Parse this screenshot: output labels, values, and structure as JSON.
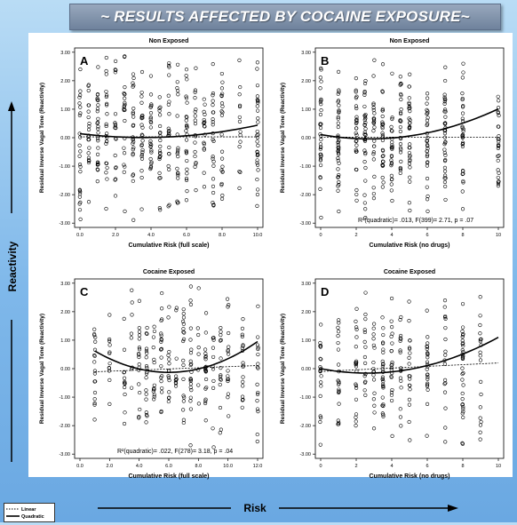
{
  "title": "~ RESULTS AFFECTED BY COCAINE EXPOSURE~",
  "side_label": "Reactivity",
  "bottom_label": "Risk",
  "legend": {
    "linear": "Linear",
    "quadratic": "Quadratic"
  },
  "panels": [
    {
      "id": "A",
      "title": "Non Exposed",
      "xlabel": "Cumulative Risk (full scale)",
      "ylabel": "Residual Inverse Vagal Tone (Reactivity)",
      "xticks": [
        "0.0",
        "2.0",
        "4.0",
        "6.0",
        "8.0",
        "10.0"
      ],
      "xmax": 10,
      "yticks": [
        "3.00",
        "2.00",
        "1.00",
        "0.00",
        "-1.00",
        "-2.00",
        "-3.00"
      ],
      "stat": "",
      "linear": [
        0.03,
        0.0
      ],
      "quad": [
        0.14,
        -0.075,
        0.0105
      ],
      "seed": 11,
      "n": 430,
      "xvals": [
        0,
        0.5,
        1,
        1.5,
        2,
        2.5,
        3,
        3.5,
        4,
        4.5,
        5,
        5.5,
        6,
        6.5,
        7,
        7.5,
        8,
        9,
        10
      ]
    },
    {
      "id": "B",
      "title": "Non Exposed",
      "xlabel": "Cumulative Risk (no drugs)",
      "ylabel": "Residual Inverse Vagal Tone (Reactivity)",
      "xticks": [
        "0",
        "2",
        "4",
        "6",
        "8",
        "10"
      ],
      "xmax": 10,
      "yticks": [
        "3.00",
        "2.00",
        "1.00",
        "0.00",
        "-1.00",
        "-2.00",
        "-3.00"
      ],
      "stat_r2": "R²(quadratic)= .013,  ",
      "stat_f": "F(399)= 2.71, p = .07",
      "linear": [
        0.02,
        0.0
      ],
      "quad": [
        0.11,
        -0.11,
        0.02
      ],
      "seed": 23,
      "n": 400,
      "xvals": [
        0,
        1,
        2,
        2.5,
        3,
        3.5,
        4,
        4.5,
        5,
        6,
        7,
        8,
        10
      ]
    },
    {
      "id": "C",
      "title": "Cocaine Exposed",
      "xlabel": "Cumulative Risk (full scale)",
      "ylabel": "Residual Inverse Vagal Tone (Reactivity)",
      "xticks": [
        "0.0",
        "2.0",
        "4.0",
        "6.0",
        "8.0",
        "10.0",
        "12.0"
      ],
      "xmax": 12,
      "yticks": [
        "3.00",
        "2.00",
        "1.00",
        "0.00",
        "-1.00",
        "-2.00",
        "-3.00"
      ],
      "stat_r2": "R²(quadratic)= .022,  ",
      "stat_f": "F(278)= 3.18, p = .04",
      "linear": [
        -0.13,
        0.02
      ],
      "quad": [
        0.95,
        -0.36,
        0.03
      ],
      "seed": 37,
      "n": 300,
      "xvals": [
        1,
        2,
        3,
        3.5,
        4,
        4.5,
        5,
        5.5,
        6,
        6.5,
        7,
        7.5,
        8,
        8.5,
        9,
        9.5,
        10,
        11,
        12
      ]
    },
    {
      "id": "D",
      "title": "Cocaine Exposed",
      "xlabel": "Cumulative Risk (no drugs)",
      "ylabel": "Residual Inverse Vagal Tone (Reactivity)",
      "xticks": [
        "0",
        "2",
        "4",
        "6",
        "8",
        "10"
      ],
      "xmax": 10,
      "yticks": [
        "3.00",
        "2.00",
        "1.00",
        "0.00",
        "-1.00",
        "-2.00",
        "-3.00"
      ],
      "stat": "",
      "linear": [
        -0.1,
        0.03
      ],
      "quad": [
        0.0,
        -0.12,
        0.023
      ],
      "seed": 53,
      "n": 280,
      "xvals": [
        0,
        1,
        2,
        2.5,
        3,
        3.5,
        4,
        4.5,
        5,
        6,
        7,
        8,
        9
      ]
    }
  ],
  "chart_data": [
    {
      "type": "scatter",
      "panel": "A",
      "title": "Non Exposed",
      "xlabel": "Cumulative Risk (full scale)",
      "ylabel": "Residual Inverse Vagal Tone (Reactivity)",
      "xlim": [
        0,
        10
      ],
      "ylim": [
        -3,
        3
      ],
      "fits": [
        "Linear",
        "Quadratic"
      ]
    },
    {
      "type": "scatter",
      "panel": "B",
      "title": "Non Exposed",
      "xlabel": "Cumulative Risk (no drugs)",
      "ylabel": "Residual Inverse Vagal Tone (Reactivity)",
      "xlim": [
        0,
        10
      ],
      "ylim": [
        -3,
        3
      ],
      "annotation": "R²(quadratic)= .013, F(399)= 2.71, p = .07"
    },
    {
      "type": "scatter",
      "panel": "C",
      "title": "Cocaine Exposed",
      "xlabel": "Cumulative Risk (full scale)",
      "ylabel": "Residual Inverse Vagal Tone (Reactivity)",
      "xlim": [
        0,
        12
      ],
      "ylim": [
        -3,
        3
      ],
      "annotation": "R²(quadratic)= .022, F(278)= 3.18, p = .04"
    },
    {
      "type": "scatter",
      "panel": "D",
      "title": "Cocaine Exposed",
      "xlabel": "Cumulative Risk (no drugs)",
      "ylabel": "Residual Inverse Vagal Tone (Reactivity)",
      "xlim": [
        0,
        10
      ],
      "ylim": [
        -3,
        3
      ]
    }
  ]
}
